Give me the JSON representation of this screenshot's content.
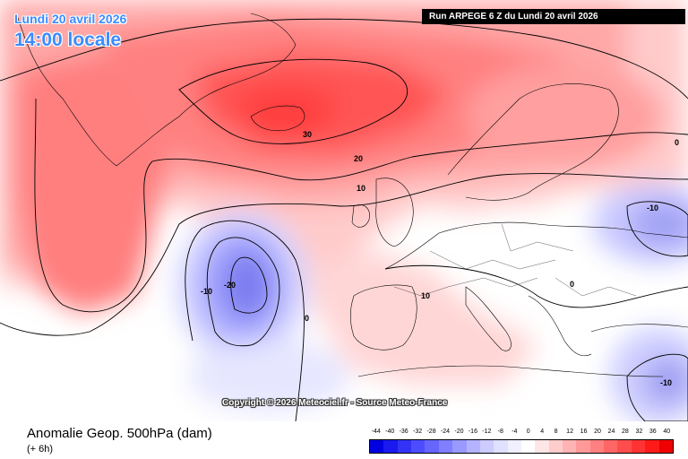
{
  "header": {
    "date": "Lundi 20 avril 2026",
    "time": "14:00 locale",
    "run": "Run ARPEGE 6 Z du Lundi 20 avril 2026"
  },
  "copyright": "Copyright © 2026 Meteociel.fr - Source Meteo-France",
  "footer": {
    "title": "Anomalie Geop. 500hPa (dam)",
    "subtitle": "(+ 6h)"
  },
  "legend": {
    "labels": [
      "-44",
      "-40",
      "-36",
      "-32",
      "-28",
      "-24",
      "-20",
      "-16",
      "-12",
      "-8",
      "-4",
      "0",
      "4",
      "8",
      "12",
      "16",
      "20",
      "24",
      "28",
      "32",
      "36",
      "40"
    ],
    "colors": [
      "#0000e0",
      "#1a1aee",
      "#3333f5",
      "#4d4dff",
      "#6666ff",
      "#7f7fff",
      "#9999ff",
      "#b3b3ff",
      "#ccccff",
      "#e0e0ff",
      "#f0f0ff",
      "#ffffff",
      "#ffe6e6",
      "#ffcccc",
      "#ffb3b3",
      "#ff9999",
      "#ff8080",
      "#ff6666",
      "#ff4d4d",
      "#ff3333",
      "#ff1a1a",
      "#f00000"
    ]
  },
  "contour_labels": [
    "30",
    "20",
    "10",
    "10",
    "0",
    "-10",
    "-20",
    "0",
    "-10",
    "0",
    "-10"
  ]
}
